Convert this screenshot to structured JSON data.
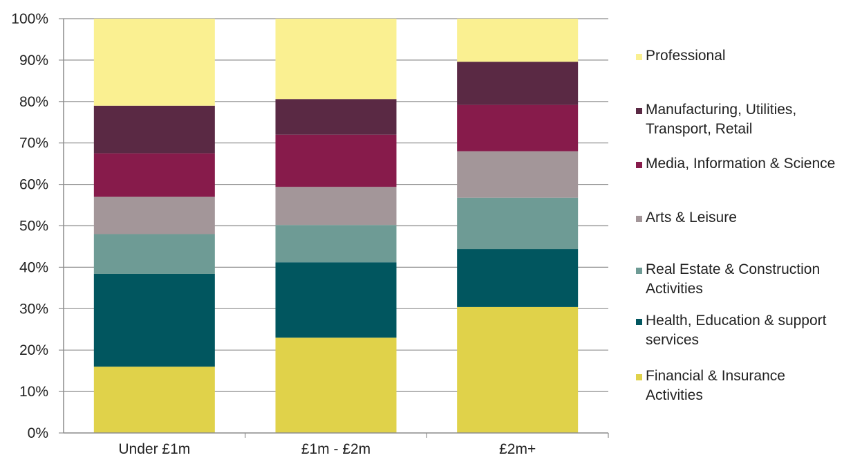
{
  "chart_data": {
    "type": "bar",
    "stacked": true,
    "normalized": true,
    "categories": [
      "Under £1m",
      "£1m - £2m",
      "£2m+"
    ],
    "series": [
      {
        "name": "Financial & Insurance Activities",
        "color": "#E0D24A",
        "values": [
          16,
          23,
          30.4
        ]
      },
      {
        "name": "Health, Education & support services",
        "color": "#01565F",
        "values": [
          22.4,
          18.2,
          14
        ]
      },
      {
        "name": "Real Estate & Construction Activities",
        "color": "#6E9B95",
        "values": [
          9.6,
          9,
          12.4
        ]
      },
      {
        "name": "Arts & Leisure",
        "color": "#A39699",
        "values": [
          9,
          9.2,
          11.2
        ]
      },
      {
        "name": "Media, Information & Science",
        "color": "#871B4B",
        "values": [
          10.5,
          12.6,
          11.2
        ]
      },
      {
        "name": "Manufacturing, Utilities, Transport, Retail",
        "color": "#5A2944",
        "values": [
          11.5,
          8.6,
          10.4
        ]
      },
      {
        "name": "Professional",
        "color": "#FAF091",
        "values": [
          21,
          19.4,
          10.4
        ]
      }
    ],
    "ylim": [
      0,
      100
    ],
    "yticks": [
      "0%",
      "10%",
      "20%",
      "30%",
      "40%",
      "50%",
      "60%",
      "70%",
      "80%",
      "90%",
      "100%"
    ],
    "grid": true,
    "legend_position": "right",
    "legend": [
      {
        "series": 6,
        "lines": [
          "Professional"
        ]
      },
      {
        "series": 5,
        "lines": [
          "Manufacturing, Utilities,",
          "Transport, Retail"
        ]
      },
      {
        "series": 4,
        "lines": [
          "Media, Information & Science"
        ]
      },
      {
        "series": 3,
        "lines": [
          "Arts & Leisure"
        ]
      },
      {
        "series": 2,
        "lines": [
          "Real Estate & Construction",
          "Activities"
        ]
      },
      {
        "series": 1,
        "lines": [
          "Health, Education & support",
          "services"
        ]
      },
      {
        "series": 0,
        "lines": [
          "Financial & Insurance",
          "Activities"
        ]
      }
    ]
  }
}
